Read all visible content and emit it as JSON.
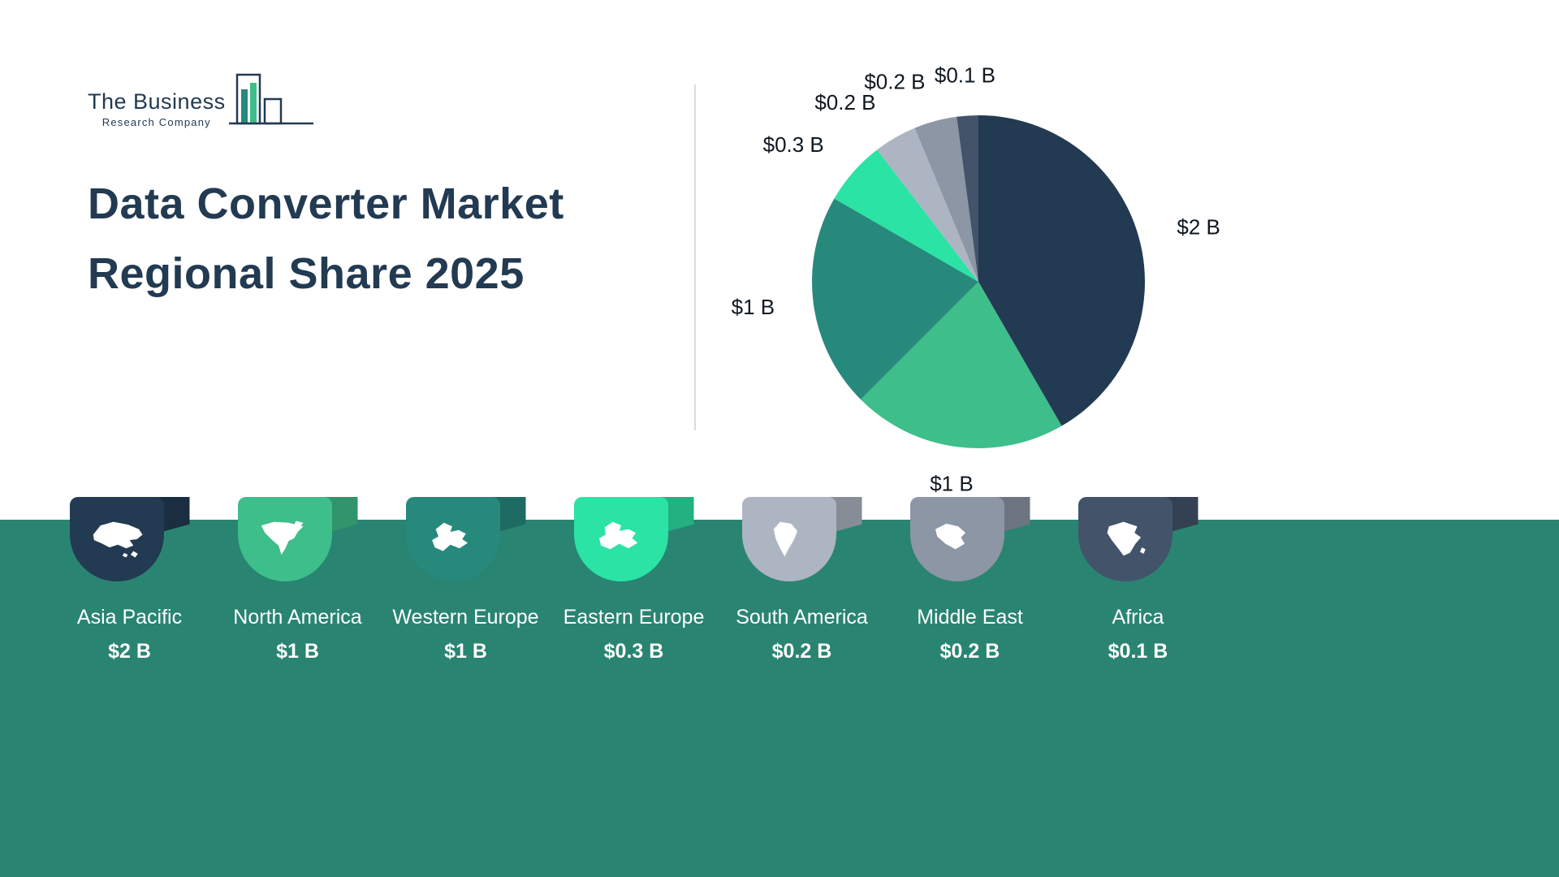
{
  "logo": {
    "line1": "The Business",
    "line2": "Research Company"
  },
  "title": {
    "line1": "Data Converter Market",
    "line2": "Regional Share 2025"
  },
  "chart_data": {
    "type": "pie",
    "title": "Data Converter Market Regional Share 2025",
    "categories": [
      "Asia Pacific",
      "North America",
      "Western Europe",
      "Eastern Europe",
      "South America",
      "Middle East",
      "Africa"
    ],
    "values": [
      2,
      1,
      1,
      0.3,
      0.2,
      0.2,
      0.1
    ],
    "labels": [
      "$2 B",
      "$1 B",
      "$1 B",
      "$0.3 B",
      "$0.2 B",
      "$0.2 B",
      "$0.1 B"
    ],
    "colors": [
      "#223A52",
      "#3DBE8B",
      "#27897C",
      "#2BE3A4",
      "#ADB5C2",
      "#8C96A5",
      "#42536A"
    ],
    "start_angle_deg": 0,
    "direction": "clockwise",
    "legend_position": "bottom"
  },
  "legend": {
    "items": [
      {
        "name": "Asia Pacific",
        "value": "$2 B",
        "color": "#223A52",
        "icon": "asia-pacific-map-icon"
      },
      {
        "name": "North America",
        "value": "$1 B",
        "color": "#3DBE8B",
        "icon": "north-america-map-icon"
      },
      {
        "name": "Western Europe",
        "value": "$1 B",
        "color": "#27897C",
        "icon": "western-europe-map-icon"
      },
      {
        "name": "Eastern Europe",
        "value": "$0.3 B",
        "color": "#2BE3A4",
        "icon": "eastern-europe-map-icon"
      },
      {
        "name": "South America",
        "value": "$0.2 B",
        "color": "#ADB5C2",
        "icon": "south-america-map-icon"
      },
      {
        "name": "Middle East",
        "value": "$0.2 B",
        "color": "#8C96A5",
        "icon": "middle-east-map-icon"
      },
      {
        "name": "Africa",
        "value": "$0.1 B",
        "color": "#42536A",
        "icon": "africa-map-icon"
      }
    ]
  },
  "colors": {
    "band": "#2A8472",
    "title_text": "#223A52",
    "divider": "#D8DCE0",
    "pie_label_text": "#101820",
    "legend_text": "#FFFFFF"
  }
}
